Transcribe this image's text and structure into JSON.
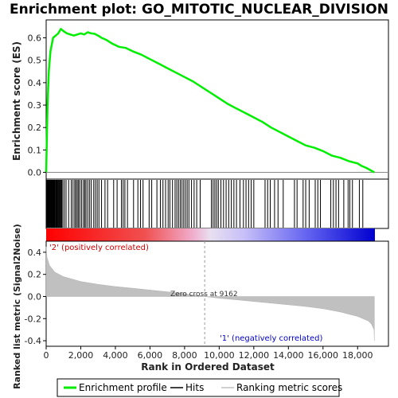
{
  "title": "Enrichment plot: GO_MITOTIC_NUCLEAR_DIVISION",
  "colors": {
    "enrichment_line": "#00ee00",
    "hits": "#000000",
    "metric_fill": "#c0c0c0",
    "positive_label": "#cc0000",
    "negative_label": "#0000cc",
    "heat_start": "#ff0000",
    "heat_end": "#0000ff"
  },
  "legend": {
    "enrichment_profile": "Enrichment profile",
    "hits": "Hits",
    "ranking_metric_scores": "Ranking metric scores"
  },
  "chart_data": {
    "type": "line",
    "x_range": [
      0,
      19000
    ],
    "xlabel": "Rank in Ordered Dataset",
    "x_ticks": [
      0,
      2000,
      4000,
      6000,
      8000,
      10000,
      12000,
      14000,
      16000,
      18000
    ],
    "x_tick_labels": [
      "0",
      "2,000",
      "4,000",
      "6,000",
      "8,000",
      "10,000",
      "12,000",
      "14,000",
      "16,000",
      "18,000"
    ],
    "n_genes": 18970,
    "enrichment": {
      "ylabel": "Enrichment score (ES)",
      "ylim": [
        -0.03,
        0.68
      ],
      "y_ticks": [
        0.0,
        0.1,
        0.2,
        0.3,
        0.4,
        0.5,
        0.6
      ],
      "y_tick_labels": [
        "0.0",
        "0.1",
        "0.2",
        "0.3",
        "0.4",
        "0.5",
        "0.6"
      ],
      "x": [
        0,
        30,
        80,
        150,
        250,
        400,
        550,
        700,
        850,
        1000,
        1200,
        1400,
        1600,
        1800,
        2000,
        2200,
        2400,
        2600,
        2800,
        3000,
        3200,
        3500,
        3800,
        4200,
        4600,
        5000,
        5500,
        6000,
        6500,
        7000,
        7500,
        8000,
        8500,
        9000,
        9500,
        10000,
        10500,
        11000,
        11500,
        12000,
        12500,
        13000,
        13500,
        14000,
        14500,
        15000,
        15500,
        16000,
        16500,
        17000,
        17500,
        18000,
        18200,
        18500,
        18970
      ],
      "y": [
        0.0,
        0.12,
        0.3,
        0.45,
        0.54,
        0.6,
        0.61,
        0.62,
        0.64,
        0.63,
        0.62,
        0.615,
        0.61,
        0.615,
        0.62,
        0.615,
        0.625,
        0.62,
        0.618,
        0.61,
        0.6,
        0.59,
        0.575,
        0.56,
        0.555,
        0.54,
        0.525,
        0.505,
        0.485,
        0.465,
        0.445,
        0.425,
        0.405,
        0.38,
        0.355,
        0.33,
        0.305,
        0.285,
        0.265,
        0.245,
        0.225,
        0.2,
        0.18,
        0.16,
        0.14,
        0.12,
        0.11,
        0.095,
        0.075,
        0.065,
        0.05,
        0.04,
        0.03,
        0.02,
        0.0
      ]
    },
    "hits": [
      10,
      40,
      70,
      100,
      130,
      160,
      190,
      220,
      250,
      280,
      310,
      340,
      370,
      400,
      430,
      460,
      490,
      520,
      560,
      600,
      640,
      680,
      720,
      760,
      800,
      850,
      900,
      960,
      1050,
      1150,
      1300,
      1450,
      1550,
      1650,
      1720,
      1800,
      1870,
      1950,
      2050,
      2150,
      2230,
      2300,
      2400,
      2500,
      2600,
      2750,
      2850,
      2950,
      3050,
      3200,
      3400,
      3550,
      3900,
      4100,
      4350,
      4450,
      4550,
      4700,
      5050,
      5300,
      5450,
      5600,
      5950,
      6100,
      6400,
      6600,
      6750,
      6900,
      7050,
      7150,
      7300,
      7450,
      7550,
      7650,
      7750,
      7850,
      7950,
      8050,
      8150,
      8250,
      8400,
      8550,
      8700,
      8900,
      9550,
      9650,
      9750,
      9850,
      9950,
      10100,
      10250,
      10400,
      10550,
      10700,
      10850,
      11000,
      11200,
      11400,
      11550,
      11700,
      11850,
      12000,
      12650,
      12800,
      12950,
      13200,
      13400,
      13700,
      14350,
      14500,
      14850,
      15000,
      15200,
      15550,
      15700,
      15850,
      16450,
      16600,
      16750,
      16900,
      17200,
      17450,
      17550,
      17700,
      18100,
      18300
    ],
    "metric": {
      "ylabel": "Ranked list metric (Signal2Noise)",
      "ylim": [
        -0.45,
        0.5
      ],
      "y_ticks": [
        -0.4,
        -0.2,
        0.0,
        0.2,
        0.4
      ],
      "y_tick_labels": [
        "-0.4",
        "-0.2",
        "0.0",
        "0.2",
        "0.4"
      ],
      "x": [
        0,
        50,
        200,
        500,
        1000,
        2000,
        3000,
        4000,
        5000,
        6000,
        7000,
        8000,
        9162,
        10000,
        11000,
        12000,
        13000,
        14000,
        15000,
        16000,
        17000,
        17500,
        18000,
        18300,
        18600,
        18800,
        18950,
        18970
      ],
      "y": [
        0.45,
        0.35,
        0.28,
        0.22,
        0.18,
        0.135,
        0.11,
        0.09,
        0.075,
        0.058,
        0.042,
        0.025,
        0.0,
        -0.015,
        -0.03,
        -0.045,
        -0.06,
        -0.075,
        -0.09,
        -0.11,
        -0.14,
        -0.16,
        -0.18,
        -0.2,
        -0.22,
        -0.25,
        -0.3,
        -0.4
      ]
    },
    "zero_cross": 9162,
    "zero_cross_label": "Zero cross at 9162",
    "positive_label": "'2' (positively correlated)",
    "negative_label": "'1' (negatively correlated)"
  }
}
